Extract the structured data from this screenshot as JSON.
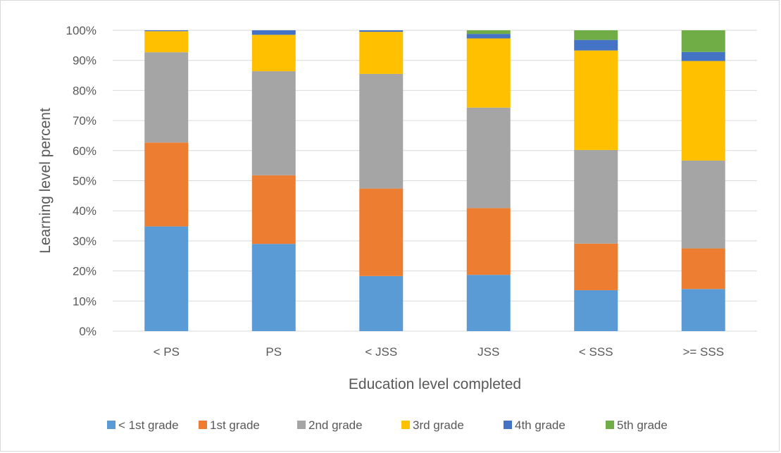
{
  "chart_data": {
    "type": "bar",
    "stacked": true,
    "title": "",
    "xlabel": "Education level completed",
    "ylabel": "Learning level percent",
    "ylim": [
      0,
      100
    ],
    "y_ticks": [
      "0%",
      "10%",
      "20%",
      "30%",
      "40%",
      "50%",
      "60%",
      "70%",
      "80%",
      "90%",
      "100%"
    ],
    "grid": true,
    "legend_position": "bottom",
    "categories": [
      "< PS",
      "PS",
      "< JSS",
      "JSS",
      "< SSS",
      ">= SSS"
    ],
    "series": [
      {
        "name": "< 1st grade",
        "color": "#5b9bd5",
        "values": [
          34.8,
          29.0,
          18.3,
          18.7,
          13.6,
          14.0
        ]
      },
      {
        "name": "1st grade",
        "color": "#ed7d31",
        "values": [
          27.9,
          22.8,
          29.1,
          22.2,
          15.5,
          13.5
        ]
      },
      {
        "name": "2nd grade",
        "color": "#a5a5a5",
        "values": [
          30.0,
          34.6,
          38.1,
          33.4,
          31.1,
          29.2
        ]
      },
      {
        "name": "3rd grade",
        "color": "#ffc000",
        "values": [
          7.0,
          12.1,
          14.0,
          23.0,
          33.1,
          33.1
        ]
      },
      {
        "name": "4th grade",
        "color": "#4472c4",
        "values": [
          0.3,
          1.5,
          0.5,
          1.5,
          3.5,
          3.0
        ]
      },
      {
        "name": "5th grade",
        "color": "#70ad47",
        "values": [
          0.0,
          0.0,
          0.0,
          1.2,
          3.2,
          7.2
        ]
      }
    ]
  }
}
